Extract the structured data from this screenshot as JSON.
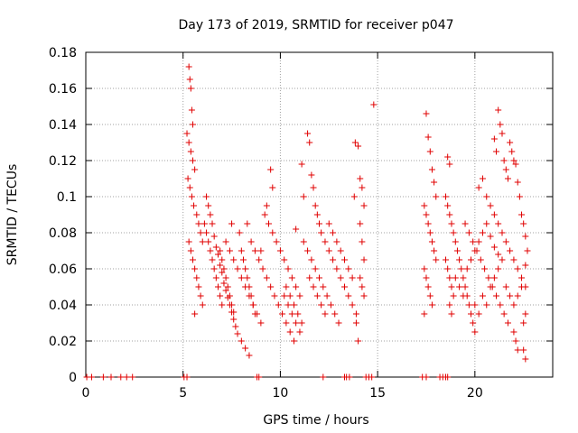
{
  "chart_data": {
    "type": "scatter",
    "title": "Day 173 of 2019, SRMTID for receiver p047",
    "xlabel": "GPS time / hours",
    "ylabel": "SRMTID / TECUs",
    "xlim": [
      0,
      24
    ],
    "ylim": [
      0,
      0.18
    ],
    "xticks": [
      0,
      5,
      10,
      15,
      20
    ],
    "yticks": [
      0,
      0.02,
      0.04,
      0.06,
      0.08,
      0.1,
      0.12,
      0.14,
      0.16,
      0.18
    ],
    "xtick_labels": [
      "0",
      "5",
      "10",
      "15",
      "20"
    ],
    "ytick_labels": [
      "0",
      "0.02",
      "0.04",
      "0.06",
      "0.08",
      "0.1",
      "0.12",
      "0.14",
      "0.16",
      "0.18"
    ],
    "grid": true,
    "marker": "+",
    "color": "#e00000",
    "zero_points_x": [
      0.05,
      0.3,
      0.9,
      1.3,
      1.8,
      2.1,
      2.4,
      5.05,
      5.2,
      8.8,
      8.9,
      12.2,
      13.3,
      13.4,
      13.55,
      14.4,
      14.55,
      14.7,
      17.3,
      17.5,
      18.2,
      18.35,
      18.5,
      18.6
    ],
    "series": [
      {
        "name": "SRMTID",
        "points": [
          [
            5.3,
            0.172
          ],
          [
            5.35,
            0.165
          ],
          [
            5.4,
            0.16
          ],
          [
            5.45,
            0.148
          ],
          [
            5.5,
            0.14
          ],
          [
            5.2,
            0.135
          ],
          [
            5.3,
            0.13
          ],
          [
            5.4,
            0.125
          ],
          [
            5.5,
            0.12
          ],
          [
            5.6,
            0.115
          ],
          [
            5.25,
            0.11
          ],
          [
            5.35,
            0.105
          ],
          [
            5.45,
            0.1
          ],
          [
            5.55,
            0.095
          ],
          [
            5.7,
            0.09
          ],
          [
            5.8,
            0.085
          ],
          [
            5.9,
            0.08
          ],
          [
            6.0,
            0.075
          ],
          [
            5.3,
            0.075
          ],
          [
            5.4,
            0.07
          ],
          [
            5.5,
            0.065
          ],
          [
            5.6,
            0.06
          ],
          [
            5.7,
            0.055
          ],
          [
            5.8,
            0.05
          ],
          [
            5.9,
            0.045
          ],
          [
            6.0,
            0.04
          ],
          [
            5.6,
            0.035
          ],
          [
            6.1,
            0.085
          ],
          [
            6.2,
            0.08
          ],
          [
            6.3,
            0.075
          ],
          [
            6.4,
            0.07
          ],
          [
            6.5,
            0.065
          ],
          [
            6.6,
            0.06
          ],
          [
            6.7,
            0.055
          ],
          [
            6.8,
            0.05
          ],
          [
            6.9,
            0.045
          ],
          [
            7.0,
            0.04
          ],
          [
            6.2,
            0.1
          ],
          [
            6.3,
            0.095
          ],
          [
            6.4,
            0.09
          ],
          [
            6.5,
            0.085
          ],
          [
            6.6,
            0.078
          ],
          [
            6.7,
            0.072
          ],
          [
            6.8,
            0.068
          ],
          [
            6.9,
            0.062
          ],
          [
            7.0,
            0.058
          ],
          [
            7.1,
            0.052
          ],
          [
            7.2,
            0.048
          ],
          [
            7.3,
            0.044
          ],
          [
            7.4,
            0.04
          ],
          [
            7.5,
            0.036
          ],
          [
            7.6,
            0.032
          ],
          [
            7.7,
            0.028
          ],
          [
            7.8,
            0.024
          ],
          [
            8.0,
            0.02
          ],
          [
            8.2,
            0.016
          ],
          [
            8.4,
            0.012
          ],
          [
            7.2,
            0.075
          ],
          [
            7.4,
            0.07
          ],
          [
            7.6,
            0.065
          ],
          [
            7.8,
            0.06
          ],
          [
            8.0,
            0.055
          ],
          [
            8.2,
            0.05
          ],
          [
            8.4,
            0.045
          ],
          [
            8.6,
            0.04
          ],
          [
            8.8,
            0.035
          ],
          [
            9.0,
            0.03
          ],
          [
            7.5,
            0.085
          ],
          [
            7.9,
            0.08
          ],
          [
            8.3,
            0.085
          ],
          [
            8.5,
            0.075
          ],
          [
            8.7,
            0.07
          ],
          [
            8.9,
            0.065
          ],
          [
            9.1,
            0.06
          ],
          [
            9.3,
            0.055
          ],
          [
            9.5,
            0.05
          ],
          [
            9.7,
            0.045
          ],
          [
            9.9,
            0.04
          ],
          [
            10.1,
            0.035
          ],
          [
            10.3,
            0.03
          ],
          [
            10.5,
            0.025
          ],
          [
            10.7,
            0.02
          ],
          [
            9.2,
            0.09
          ],
          [
            9.4,
            0.085
          ],
          [
            9.6,
            0.08
          ],
          [
            9.8,
            0.075
          ],
          [
            10.0,
            0.07
          ],
          [
            10.2,
            0.065
          ],
          [
            10.4,
            0.06
          ],
          [
            10.6,
            0.055
          ],
          [
            10.8,
            0.05
          ],
          [
            11.0,
            0.045
          ],
          [
            9.0,
            0.07
          ],
          [
            9.3,
            0.095
          ],
          [
            9.6,
            0.105
          ],
          [
            9.5,
            0.115
          ],
          [
            10.8,
            0.082
          ],
          [
            11.2,
            0.075
          ],
          [
            11.4,
            0.07
          ],
          [
            11.6,
            0.065
          ],
          [
            11.8,
            0.06
          ],
          [
            12.0,
            0.055
          ],
          [
            12.2,
            0.05
          ],
          [
            12.4,
            0.045
          ],
          [
            12.6,
            0.04
          ],
          [
            12.8,
            0.035
          ],
          [
            13.0,
            0.03
          ],
          [
            11.1,
            0.118
          ],
          [
            11.2,
            0.1
          ],
          [
            11.4,
            0.135
          ],
          [
            11.5,
            0.13
          ],
          [
            11.6,
            0.112
          ],
          [
            11.7,
            0.105
          ],
          [
            11.8,
            0.095
          ],
          [
            11.9,
            0.09
          ],
          [
            12.0,
            0.085
          ],
          [
            12.1,
            0.08
          ],
          [
            12.3,
            0.075
          ],
          [
            12.5,
            0.07
          ],
          [
            12.7,
            0.065
          ],
          [
            12.9,
            0.06
          ],
          [
            13.1,
            0.055
          ],
          [
            13.3,
            0.05
          ],
          [
            13.5,
            0.045
          ],
          [
            13.7,
            0.04
          ],
          [
            13.9,
            0.035
          ],
          [
            14.0,
            0.02
          ],
          [
            13.9,
            0.03
          ],
          [
            13.8,
            0.1
          ],
          [
            13.85,
            0.13
          ],
          [
            14.0,
            0.128
          ],
          [
            14.1,
            0.11
          ],
          [
            14.2,
            0.105
          ],
          [
            14.3,
            0.095
          ],
          [
            14.1,
            0.085
          ],
          [
            14.2,
            0.075
          ],
          [
            14.3,
            0.065
          ],
          [
            14.1,
            0.055
          ],
          [
            14.2,
            0.05
          ],
          [
            14.3,
            0.045
          ],
          [
            14.8,
            0.151
          ],
          [
            8.0,
            0.07
          ],
          [
            8.1,
            0.065
          ],
          [
            8.2,
            0.06
          ],
          [
            8.3,
            0.055
          ],
          [
            8.4,
            0.05
          ],
          [
            8.5,
            0.045
          ],
          [
            8.6,
            0.04
          ],
          [
            8.7,
            0.035
          ],
          [
            6.9,
            0.07
          ],
          [
            7.0,
            0.065
          ],
          [
            7.1,
            0.06
          ],
          [
            7.2,
            0.055
          ],
          [
            7.3,
            0.05
          ],
          [
            7.4,
            0.045
          ],
          [
            7.5,
            0.04
          ],
          [
            7.6,
            0.036
          ],
          [
            10.2,
            0.045
          ],
          [
            10.4,
            0.04
          ],
          [
            10.6,
            0.035
          ],
          [
            10.8,
            0.03
          ],
          [
            11.0,
            0.025
          ],
          [
            10.3,
            0.05
          ],
          [
            10.5,
            0.045
          ],
          [
            10.7,
            0.04
          ],
          [
            10.9,
            0.035
          ],
          [
            11.1,
            0.03
          ],
          [
            12.5,
            0.085
          ],
          [
            12.7,
            0.08
          ],
          [
            12.9,
            0.075
          ],
          [
            13.1,
            0.07
          ],
          [
            13.3,
            0.065
          ],
          [
            13.5,
            0.06
          ],
          [
            13.7,
            0.055
          ],
          [
            11.5,
            0.055
          ],
          [
            11.7,
            0.05
          ],
          [
            11.9,
            0.045
          ],
          [
            12.1,
            0.04
          ],
          [
            12.3,
            0.035
          ],
          [
            17.5,
            0.146
          ],
          [
            17.6,
            0.133
          ],
          [
            17.7,
            0.125
          ],
          [
            17.8,
            0.115
          ],
          [
            17.9,
            0.108
          ],
          [
            18.0,
            0.1
          ],
          [
            17.4,
            0.095
          ],
          [
            17.5,
            0.09
          ],
          [
            17.6,
            0.085
          ],
          [
            17.7,
            0.08
          ],
          [
            17.8,
            0.075
          ],
          [
            17.9,
            0.07
          ],
          [
            18.0,
            0.065
          ],
          [
            17.4,
            0.06
          ],
          [
            17.5,
            0.055
          ],
          [
            17.6,
            0.05
          ],
          [
            17.7,
            0.045
          ],
          [
            17.8,
            0.04
          ],
          [
            17.4,
            0.035
          ],
          [
            18.5,
            0.1
          ],
          [
            18.6,
            0.095
          ],
          [
            18.7,
            0.09
          ],
          [
            18.8,
            0.085
          ],
          [
            18.9,
            0.08
          ],
          [
            19.0,
            0.075
          ],
          [
            19.1,
            0.07
          ],
          [
            19.2,
            0.065
          ],
          [
            19.3,
            0.06
          ],
          [
            19.4,
            0.055
          ],
          [
            19.5,
            0.05
          ],
          [
            19.6,
            0.045
          ],
          [
            19.7,
            0.04
          ],
          [
            19.8,
            0.035
          ],
          [
            19.9,
            0.03
          ],
          [
            20.0,
            0.025
          ],
          [
            18.6,
            0.122
          ],
          [
            18.7,
            0.118
          ],
          [
            18.5,
            0.065
          ],
          [
            18.6,
            0.06
          ],
          [
            18.7,
            0.055
          ],
          [
            18.8,
            0.05
          ],
          [
            18.9,
            0.045
          ],
          [
            18.7,
            0.04
          ],
          [
            18.8,
            0.035
          ],
          [
            19.5,
            0.085
          ],
          [
            19.7,
            0.08
          ],
          [
            19.9,
            0.075
          ],
          [
            20.1,
            0.07
          ],
          [
            20.3,
            0.065
          ],
          [
            20.5,
            0.06
          ],
          [
            20.7,
            0.055
          ],
          [
            20.9,
            0.05
          ],
          [
            21.1,
            0.045
          ],
          [
            21.3,
            0.04
          ],
          [
            21.5,
            0.035
          ],
          [
            21.7,
            0.03
          ],
          [
            22.0,
            0.025
          ],
          [
            22.1,
            0.02
          ],
          [
            22.2,
            0.015
          ],
          [
            20.2,
            0.105
          ],
          [
            20.4,
            0.11
          ],
          [
            20.6,
            0.1
          ],
          [
            20.8,
            0.095
          ],
          [
            21.0,
            0.09
          ],
          [
            21.2,
            0.085
          ],
          [
            21.4,
            0.08
          ],
          [
            21.6,
            0.075
          ],
          [
            21.8,
            0.07
          ],
          [
            22.0,
            0.065
          ],
          [
            22.2,
            0.06
          ],
          [
            22.4,
            0.055
          ],
          [
            22.6,
            0.05
          ],
          [
            21.0,
            0.132
          ],
          [
            21.1,
            0.125
          ],
          [
            21.2,
            0.148
          ],
          [
            21.3,
            0.14
          ],
          [
            21.4,
            0.135
          ],
          [
            21.5,
            0.12
          ],
          [
            21.6,
            0.115
          ],
          [
            21.7,
            0.11
          ],
          [
            21.8,
            0.13
          ],
          [
            21.9,
            0.125
          ],
          [
            22.0,
            0.12
          ],
          [
            22.1,
            0.118
          ],
          [
            22.2,
            0.108
          ],
          [
            22.3,
            0.1
          ],
          [
            22.4,
            0.09
          ],
          [
            22.5,
            0.085
          ],
          [
            22.6,
            0.078
          ],
          [
            22.7,
            0.07
          ],
          [
            22.6,
            0.062
          ],
          [
            22.5,
            0.03
          ],
          [
            22.6,
            0.035
          ],
          [
            22.5,
            0.015
          ],
          [
            22.6,
            0.01
          ],
          [
            20.0,
            0.04
          ],
          [
            20.2,
            0.035
          ],
          [
            20.4,
            0.045
          ],
          [
            20.6,
            0.04
          ],
          [
            20.8,
            0.05
          ],
          [
            21.0,
            0.055
          ],
          [
            21.2,
            0.06
          ],
          [
            21.4,
            0.065
          ],
          [
            21.6,
            0.05
          ],
          [
            21.8,
            0.045
          ],
          [
            22.0,
            0.04
          ],
          [
            22.2,
            0.045
          ],
          [
            22.4,
            0.05
          ],
          [
            19.0,
            0.055
          ],
          [
            19.2,
            0.05
          ],
          [
            19.4,
            0.045
          ],
          [
            19.6,
            0.06
          ],
          [
            19.8,
            0.065
          ],
          [
            20.0,
            0.07
          ],
          [
            20.2,
            0.075
          ],
          [
            20.4,
            0.08
          ],
          [
            20.6,
            0.085
          ],
          [
            20.8,
            0.078
          ],
          [
            21.0,
            0.072
          ],
          [
            21.2,
            0.068
          ]
        ]
      }
    ]
  }
}
